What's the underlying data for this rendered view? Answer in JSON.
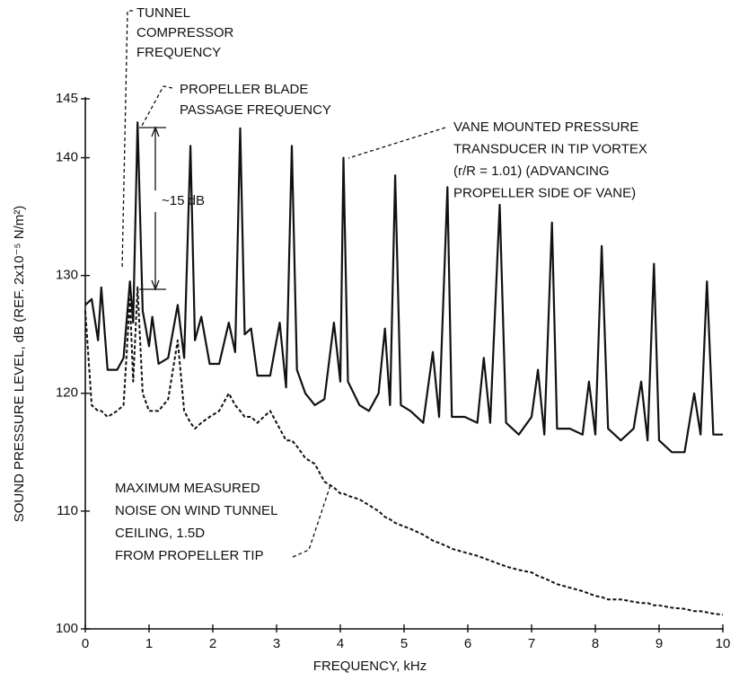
{
  "chart_data": {
    "type": "line",
    "x_label": "FREQUENCY, kHz",
    "y_label": "SOUND PRESSURE LEVEL, dB (REF. 2x10⁻⁵ N/m²)",
    "annotations": [
      {
        "lines": [
          "TUNNEL",
          "COMPRESSOR",
          "FREQUENCY"
        ]
      },
      {
        "lines": [
          "PROPELLER BLADE",
          "PASSAGE FREQUENCY"
        ]
      },
      {
        "lines": [
          "VANE MOUNTED PRESSURE",
          "TRANSDUCER IN TIP VORTEX",
          "(r/R = 1.01) (ADVANCING",
          "PROPELLER SIDE OF VANE)"
        ]
      },
      {
        "lines": [
          "MAXIMUM MEASURED",
          "NOISE ON WIND TUNNEL",
          "CEILING, 1.5D",
          "FROM PROPELLER TIP"
        ]
      },
      {
        "lines": [
          "~15 dB"
        ]
      }
    ],
    "x": [
      0,
      0.1,
      0.2,
      0.25,
      0.35,
      0.5,
      0.6,
      0.7,
      0.75,
      0.82,
      0.9,
      1.0,
      1.05,
      1.15,
      1.3,
      1.45,
      1.55,
      1.65,
      1.72,
      1.82,
      1.95,
      2.1,
      2.25,
      2.35,
      2.43,
      2.5,
      2.6,
      2.7,
      2.9,
      3.05,
      3.15,
      3.24,
      3.32,
      3.45,
      3.6,
      3.75,
      3.9,
      4.0,
      4.05,
      4.12,
      4.3,
      4.45,
      4.6,
      4.7,
      4.78,
      4.86,
      4.95,
      5.1,
      5.3,
      5.45,
      5.55,
      5.68,
      5.75,
      5.95,
      6.15,
      6.25,
      6.35,
      6.5,
      6.6,
      6.8,
      7.0,
      7.1,
      7.2,
      7.32,
      7.4,
      7.6,
      7.8,
      7.9,
      8.0,
      8.1,
      8.2,
      8.4,
      8.6,
      8.72,
      8.82,
      8.92,
      9.0,
      9.2,
      9.4,
      9.55,
      9.65,
      9.75,
      9.85,
      10
    ],
    "series": [
      {
        "color": "#111111",
        "line_style": "solid",
        "values": [
          127.5,
          128,
          124.5,
          129,
          122,
          122,
          123,
          129.5,
          126,
          143,
          127,
          124,
          126.5,
          122.5,
          123,
          127.5,
          123,
          141,
          124.5,
          126.5,
          122.5,
          122.5,
          126,
          123.5,
          142.5,
          125,
          125.5,
          121.5,
          121.5,
          126,
          120.5,
          141,
          122,
          120,
          119,
          119.5,
          126,
          121,
          140,
          121,
          119,
          118.5,
          120,
          125.5,
          119,
          138.5,
          119,
          118.5,
          117.5,
          123.5,
          118,
          137.5,
          118,
          118,
          117.5,
          123,
          117.5,
          136,
          117.5,
          116.5,
          118,
          122,
          116.5,
          134.5,
          117,
          117,
          116.5,
          121,
          116.5,
          132.5,
          117,
          116,
          117,
          121,
          116,
          131,
          116,
          115,
          115,
          120,
          116.5,
          129.5,
          116.5,
          116.5
        ]
      },
      {
        "color": "#111111",
        "line_style": "dashed",
        "values": [
          127,
          119,
          118.5,
          118.5,
          118,
          118.5,
          119,
          128,
          121,
          129,
          120,
          118.5,
          118.5,
          118.5,
          119.5,
          124.5,
          118.5,
          117.5,
          117,
          117.5,
          118,
          118.5,
          120,
          119,
          118.5,
          118,
          118,
          117.5,
          118.5,
          117,
          116,
          116,
          115.5,
          114.5,
          114,
          112.5,
          112,
          111.5,
          111.5,
          111.3,
          111,
          110.5,
          110,
          109.5,
          109.3,
          109,
          108.8,
          108.5,
          108,
          107.5,
          107.3,
          107,
          106.8,
          106.5,
          106.2,
          106,
          105.8,
          105.5,
          105.3,
          105,
          104.8,
          104.5,
          104.3,
          104,
          103.8,
          103.5,
          103.2,
          103,
          102.8,
          102.7,
          102.5,
          102.5,
          102.3,
          102.2,
          102.2,
          102,
          102,
          101.8,
          101.7,
          101.5,
          101.5,
          101.4,
          101.3,
          101.2
        ]
      }
    ],
    "xlim": [
      0,
      10
    ],
    "xticks": [
      0,
      1,
      2,
      3,
      4,
      5,
      6,
      7,
      8,
      9,
      10
    ],
    "ylim": [
      100,
      145
    ],
    "yticks": [
      100,
      110,
      120,
      130,
      140,
      145
    ],
    "grid": false
  }
}
